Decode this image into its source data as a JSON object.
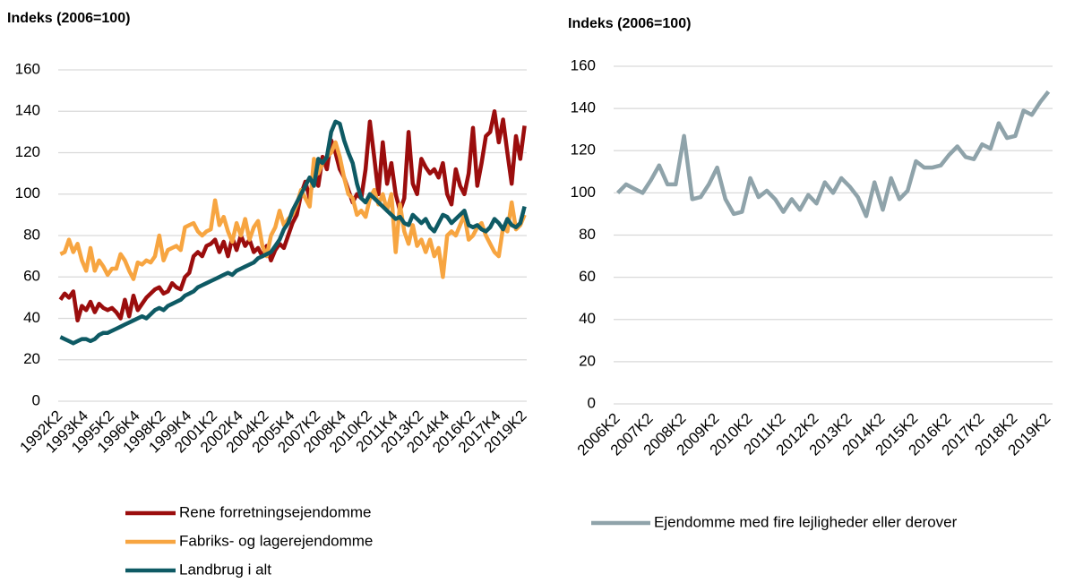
{
  "chart_data": [
    {
      "type": "line",
      "title": "Indeks (2006=100)",
      "categories": [
        "1992K2",
        null,
        null,
        null,
        null,
        null,
        "1993K4",
        null,
        null,
        null,
        null,
        null,
        "1995K2",
        null,
        null,
        null,
        null,
        null,
        "1996K4",
        null,
        null,
        null,
        null,
        null,
        "1998K2",
        null,
        null,
        null,
        null,
        null,
        "1999K4",
        null,
        null,
        null,
        null,
        null,
        "2001K2",
        null,
        null,
        null,
        null,
        null,
        "2002K4",
        null,
        null,
        null,
        null,
        null,
        "2004K2",
        null,
        null,
        null,
        null,
        null,
        "2005K4",
        null,
        null,
        null,
        null,
        null,
        "2007K2",
        null,
        null,
        null,
        null,
        null,
        "2008K4",
        null,
        null,
        null,
        null,
        null,
        "2010K2",
        null,
        null,
        null,
        null,
        null,
        "2011K4",
        null,
        null,
        null,
        null,
        null,
        "2013K2",
        null,
        null,
        null,
        null,
        null,
        "2014K4",
        null,
        null,
        null,
        null,
        null,
        "2016K2",
        null,
        null,
        null,
        null,
        null,
        "2017K4",
        null,
        null,
        null,
        null,
        null,
        "2019K2"
      ],
      "series": [
        {
          "name": "Rene forretningsejendomme",
          "color": "#9b0d0d",
          "values": [
            49,
            52,
            50,
            53,
            39,
            46,
            44,
            48,
            43,
            47,
            45,
            44,
            45,
            43,
            40,
            49,
            41,
            51,
            44,
            47,
            50,
            52,
            54,
            55,
            52,
            53,
            57,
            55,
            54,
            60,
            62,
            70,
            72,
            70,
            75,
            76,
            78,
            72,
            77,
            70,
            79,
            73,
            80,
            75,
            78,
            72,
            74,
            70,
            75,
            68,
            73,
            76,
            74,
            80,
            86,
            90,
            100,
            106,
            98,
            110,
            104,
            118,
            112,
            126,
            120,
            112,
            108,
            102,
            96,
            100,
            98,
            112,
            135,
            118,
            100,
            125,
            105,
            115,
            100,
            92,
            98,
            130,
            105,
            100,
            117,
            113,
            110,
            112,
            108,
            115,
            100,
            95,
            112,
            104,
            100,
            110,
            132,
            104,
            115,
            128,
            130,
            140,
            125,
            136,
            120,
            105,
            128,
            117,
            133
          ]
        },
        {
          "name": "Fabriks- og lagerejendomme",
          "color": "#f7a541",
          "values": [
            71,
            72,
            78,
            72,
            76,
            68,
            63,
            74,
            63,
            68,
            65,
            61,
            64,
            64,
            71,
            68,
            63,
            59,
            67,
            66,
            68,
            67,
            70,
            80,
            68,
            73,
            74,
            75,
            73,
            84,
            85,
            86,
            82,
            80,
            82,
            83,
            97,
            85,
            89,
            82,
            77,
            86,
            80,
            88,
            78,
            84,
            87,
            75,
            70,
            80,
            84,
            92,
            85,
            88,
            90,
            95,
            102,
            98,
            94,
            117,
            110,
            115,
            118,
            120,
            125,
            118,
            108,
            100,
            98,
            90,
            92,
            89,
            98,
            102,
            95,
            100,
            92,
            100,
            72,
            95,
            82,
            76,
            85,
            75,
            78,
            72,
            78,
            70,
            74,
            60,
            80,
            82,
            80,
            85,
            90,
            78,
            80,
            84,
            86,
            80,
            76,
            72,
            70,
            84,
            82,
            96,
            83,
            85,
            90
          ]
        },
        {
          "name": "Landbrug i alt",
          "color": "#0e5a64",
          "values": [
            31,
            30,
            29,
            28,
            29,
            30,
            30,
            29,
            30,
            32,
            33,
            33,
            34,
            35,
            36,
            37,
            38,
            39,
            40,
            41,
            40,
            42,
            44,
            45,
            44,
            46,
            47,
            48,
            49,
            51,
            52,
            53,
            55,
            56,
            57,
            58,
            59,
            60,
            61,
            62,
            61,
            63,
            64,
            65,
            66,
            67,
            69,
            70,
            71,
            72,
            75,
            78,
            83,
            86,
            92,
            96,
            100,
            104,
            108,
            104,
            117,
            115,
            118,
            130,
            135,
            134,
            126,
            120,
            115,
            105,
            98,
            96,
            100,
            98,
            96,
            94,
            92,
            90,
            88,
            89,
            86,
            85,
            90,
            88,
            86,
            88,
            84,
            82,
            86,
            90,
            89,
            86,
            88,
            90,
            92,
            85,
            84,
            85,
            83,
            82,
            84,
            88,
            86,
            83,
            88,
            85,
            84,
            86,
            94
          ]
        }
      ],
      "ylim": [
        0,
        160
      ],
      "yticks": [
        0,
        20,
        40,
        60,
        80,
        100,
        120,
        140,
        160
      ],
      "grid": true
    },
    {
      "type": "line",
      "title": "Indeks (2006=100)",
      "categories": [
        "2006K2",
        null,
        null,
        null,
        "2007K2",
        null,
        null,
        null,
        "2008K2",
        null,
        null,
        null,
        "2009K2",
        null,
        null,
        null,
        "2010K2",
        null,
        null,
        null,
        "2011K2",
        null,
        null,
        null,
        "2012K2",
        null,
        null,
        null,
        "2013K2",
        null,
        null,
        null,
        "2014K2",
        null,
        null,
        null,
        "2015K2",
        null,
        null,
        null,
        "2016K2",
        null,
        null,
        null,
        "2017K2",
        null,
        null,
        null,
        "2018K2",
        null,
        null,
        null,
        "2019K2"
      ],
      "series": [
        {
          "name": "Ejendomme med fire lejligheder eller derover",
          "color": "#8fa3aa",
          "values": [
            100,
            104,
            102,
            100,
            106,
            113,
            104,
            104,
            127,
            97,
            98,
            104,
            112,
            97,
            90,
            91,
            107,
            98,
            101,
            97,
            91,
            97,
            92,
            99,
            95,
            105,
            100,
            107,
            103,
            98,
            89,
            105,
            92,
            107,
            97,
            101,
            115,
            112,
            112,
            113,
            118,
            122,
            117,
            116,
            123,
            121,
            133,
            126,
            127,
            139,
            137,
            143,
            148
          ]
        }
      ],
      "ylim": [
        0,
        160
      ],
      "yticks": [
        0,
        20,
        40,
        60,
        80,
        100,
        120,
        140,
        160
      ],
      "grid": true
    }
  ]
}
